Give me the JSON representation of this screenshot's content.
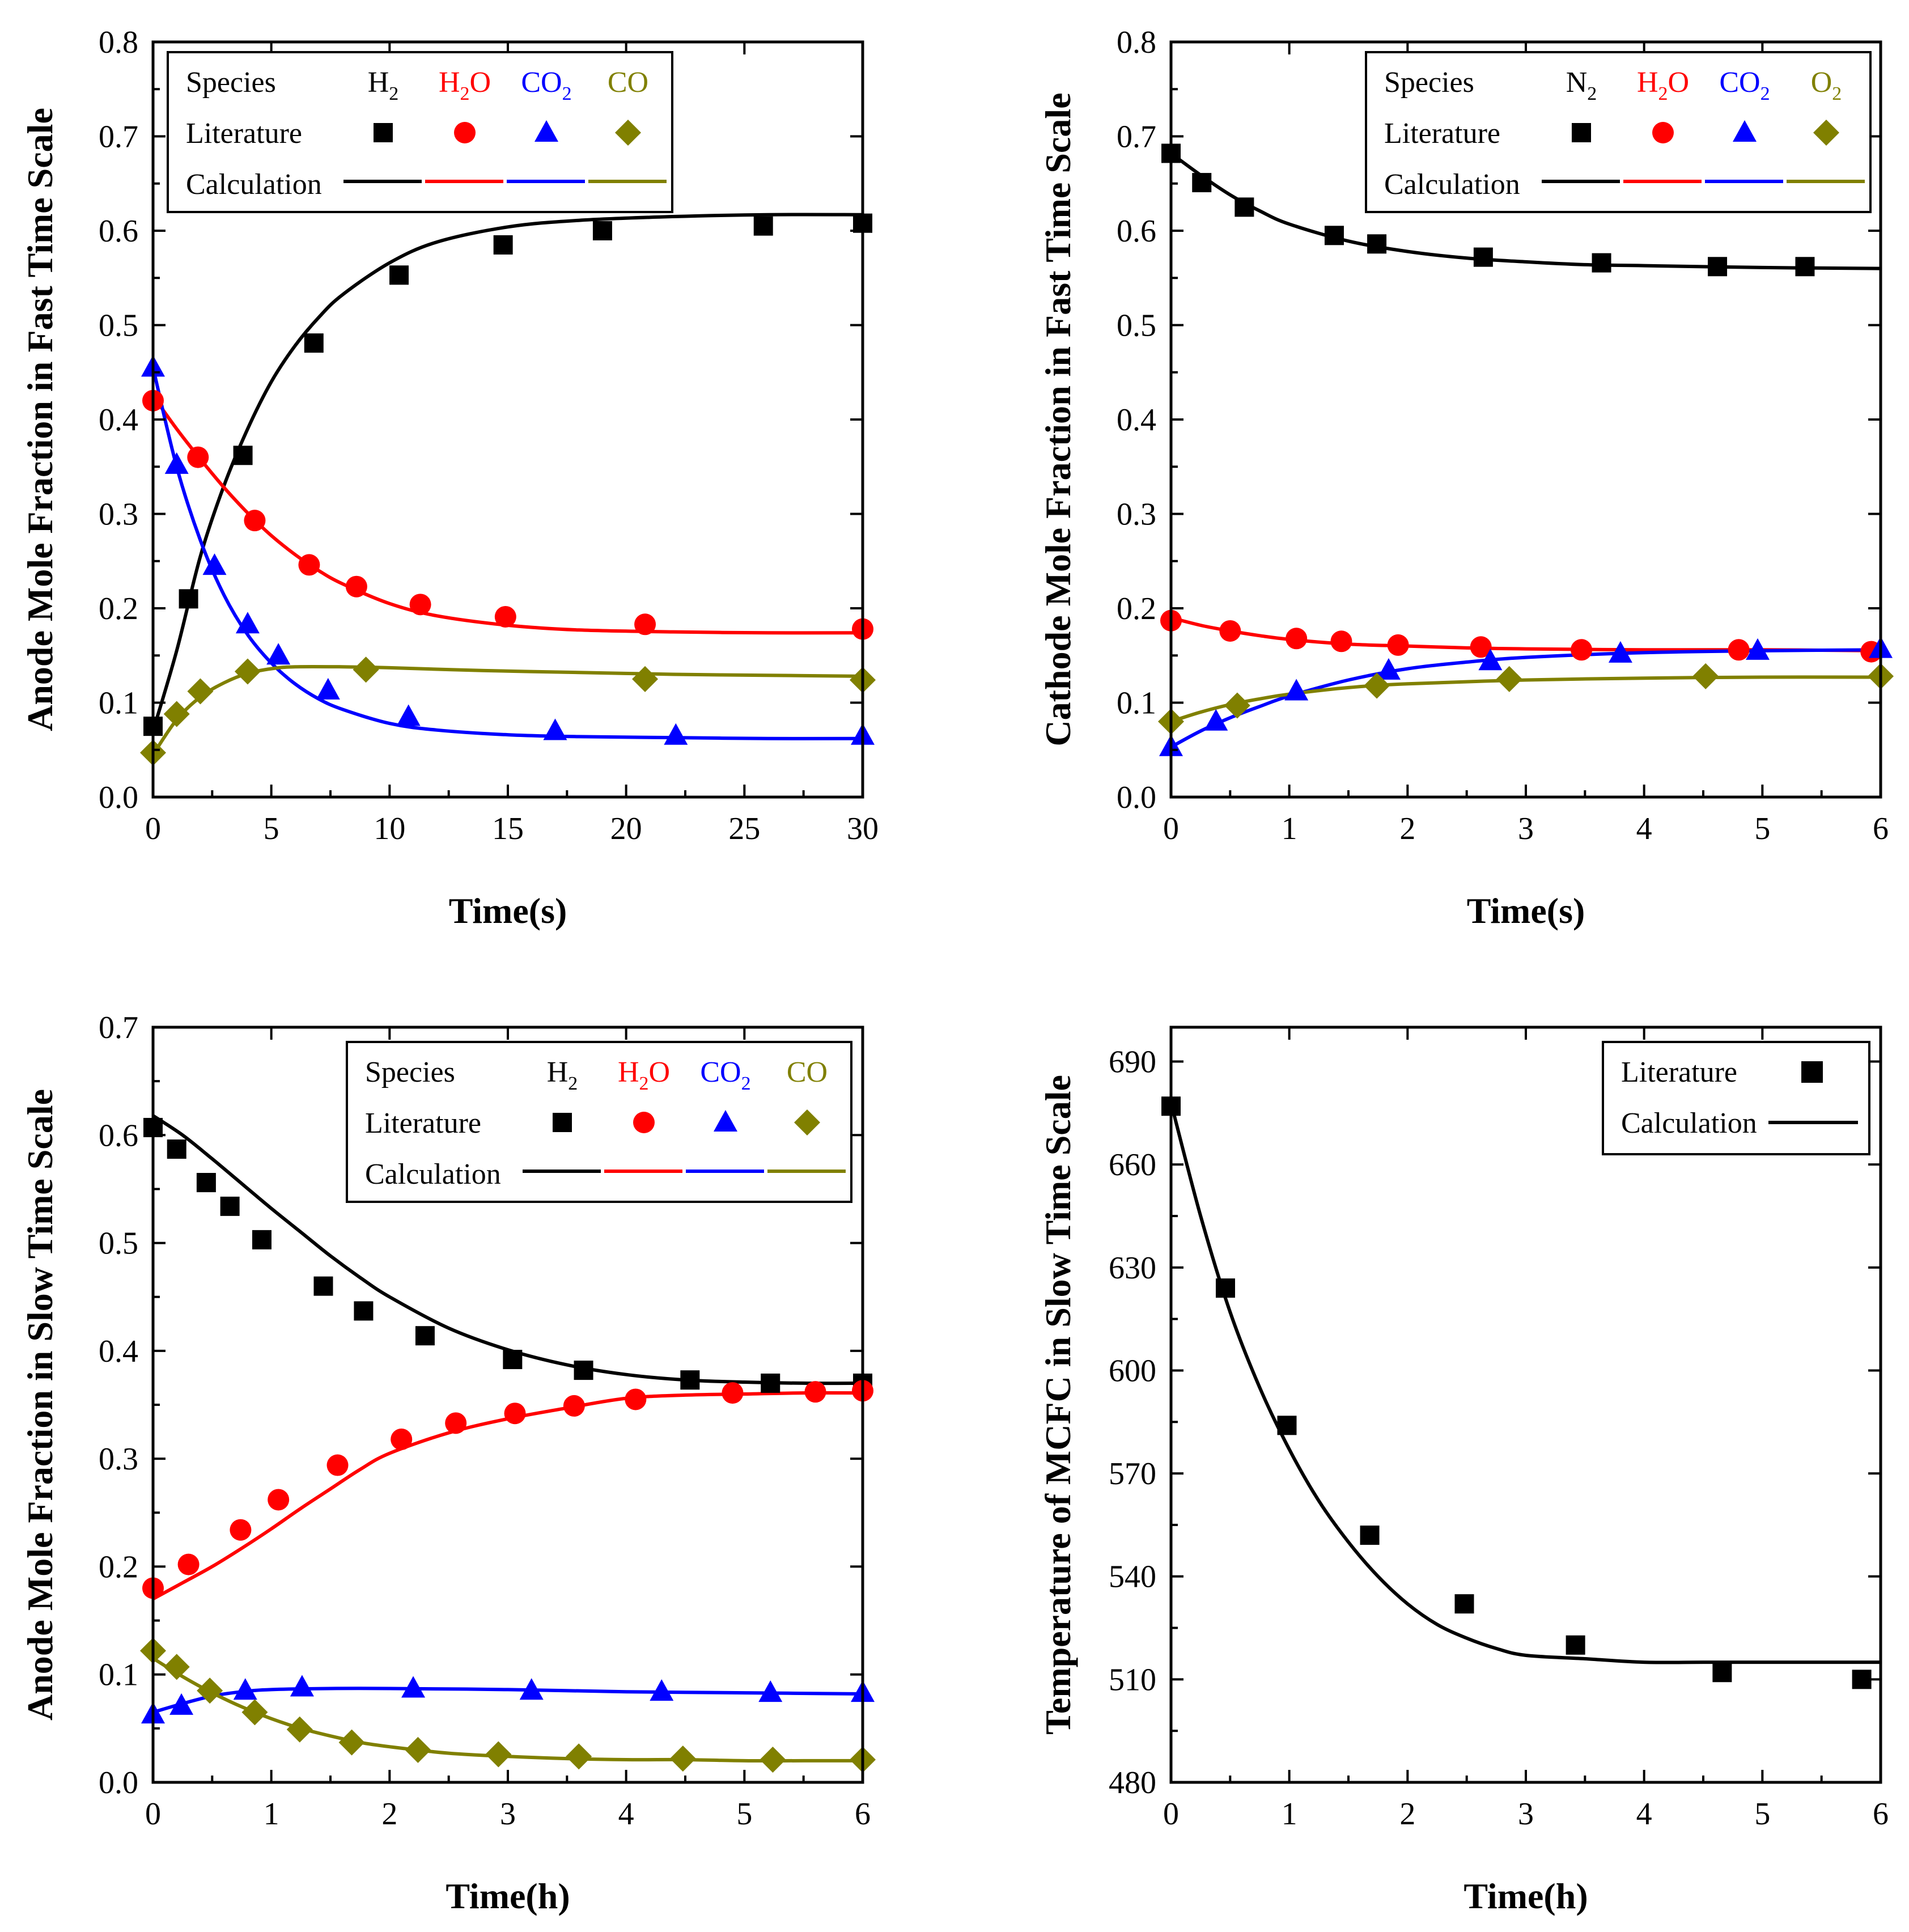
{
  "colors": {
    "black": "#000000",
    "red": "#ff0000",
    "blue": "#0000ff",
    "olive": "#808000"
  },
  "chart_data": [
    {
      "id": "anode-fast",
      "type": "scatter",
      "xlabel": "Time(s)",
      "ylabel": "Anode Mole Fraction in Fast Time Scale",
      "xlim": [
        0,
        30
      ],
      "ylim": [
        0,
        0.8
      ],
      "xticks": [
        "0",
        "5",
        "10",
        "15",
        "20",
        "25",
        "30"
      ],
      "yticks": [
        "0.0",
        "0.1",
        "0.2",
        "0.3",
        "0.4",
        "0.5",
        "0.6",
        "0.7",
        "0.8"
      ],
      "legend": {
        "position": "top-left",
        "species_label": "Species",
        "literature_label": "Literature",
        "calculation_label": "Calculation",
        "species": [
          {
            "base": "H",
            "sub": "2",
            "tail": "",
            "color": "black",
            "marker": "square"
          },
          {
            "base": "H",
            "sub": "2",
            "tail": "O",
            "color": "red",
            "marker": "circle"
          },
          {
            "base": "CO",
            "sub": "2",
            "tail": "",
            "color": "blue",
            "marker": "triangle"
          },
          {
            "base": "CO",
            "sub": "",
            "tail": "",
            "color": "olive",
            "marker": "diamond"
          }
        ]
      },
      "series": [
        {
          "name": "H2",
          "color": "black",
          "marker": "square",
          "x": [
            0,
            1.5,
            3.8,
            6.8,
            10.4,
            14.8,
            19,
            25.8,
            30
          ],
          "y": [
            0.075,
            0.21,
            0.362,
            0.481,
            0.553,
            0.585,
            0.6,
            0.605,
            0.608
          ],
          "calc_x": [
            0,
            1,
            2,
            3,
            4,
            5,
            6,
            7,
            8,
            10,
            12,
            15,
            18,
            22,
            26,
            30
          ],
          "calc_y": [
            0.07,
            0.155,
            0.255,
            0.33,
            0.39,
            0.44,
            0.478,
            0.508,
            0.532,
            0.566,
            0.588,
            0.604,
            0.611,
            0.615,
            0.617,
            0.617
          ]
        },
        {
          "name": "H2O",
          "color": "red",
          "marker": "circle",
          "x": [
            0,
            1.9,
            4.3,
            6.6,
            8.6,
            11.3,
            14.9,
            20.8,
            30
          ],
          "y": [
            0.42,
            0.36,
            0.293,
            0.246,
            0.223,
            0.204,
            0.191,
            0.183,
            0.178
          ],
          "calc_x": [
            0,
            1,
            2,
            3,
            4,
            5,
            6,
            7,
            8,
            10,
            12,
            15,
            18,
            22,
            26,
            30
          ],
          "calc_y": [
            0.425,
            0.39,
            0.358,
            0.328,
            0.301,
            0.277,
            0.257,
            0.24,
            0.226,
            0.205,
            0.192,
            0.182,
            0.177,
            0.175,
            0.174,
            0.174
          ]
        },
        {
          "name": "CO2",
          "color": "blue",
          "marker": "triangle",
          "x": [
            0,
            1,
            2.6,
            4,
            5.3,
            7.4,
            10.8,
            17,
            22.1,
            30
          ],
          "y": [
            0.455,
            0.352,
            0.245,
            0.183,
            0.15,
            0.113,
            0.085,
            0.07,
            0.065,
            0.065
          ],
          "calc_x": [
            0,
            1,
            2,
            3,
            4,
            5,
            6,
            7,
            8,
            10,
            12,
            15,
            18,
            22,
            26,
            30
          ],
          "calc_y": [
            0.455,
            0.35,
            0.272,
            0.214,
            0.172,
            0.142,
            0.12,
            0.104,
            0.093,
            0.078,
            0.071,
            0.066,
            0.064,
            0.063,
            0.062,
            0.062
          ]
        },
        {
          "name": "CO",
          "color": "olive",
          "marker": "diamond",
          "x": [
            0,
            1,
            2,
            4,
            9,
            20.8,
            30
          ],
          "y": [
            0.047,
            0.088,
            0.112,
            0.133,
            0.135,
            0.125,
            0.124
          ],
          "calc_x": [
            0,
            1,
            2,
            3,
            4,
            5,
            6,
            8,
            10,
            14,
            18,
            22,
            26,
            30
          ],
          "calc_y": [
            0.045,
            0.082,
            0.106,
            0.121,
            0.131,
            0.136,
            0.138,
            0.138,
            0.137,
            0.134,
            0.132,
            0.13,
            0.129,
            0.128
          ]
        }
      ]
    },
    {
      "id": "cathode-fast",
      "type": "scatter",
      "xlabel": "Time(s)",
      "ylabel": "Cathode Mole Fraction in Fast Time Scale",
      "xlim": [
        0,
        6
      ],
      "ylim": [
        0,
        0.8
      ],
      "xticks": [
        "0",
        "1",
        "2",
        "3",
        "4",
        "5",
        "6"
      ],
      "yticks": [
        "0.0",
        "0.1",
        "0.2",
        "0.3",
        "0.4",
        "0.5",
        "0.6",
        "0.7",
        "0.8"
      ],
      "legend": {
        "position": "top-right",
        "species_label": "Species",
        "literature_label": "Literature",
        "calculation_label": "Calculation",
        "species": [
          {
            "base": "N",
            "sub": "2",
            "tail": "",
            "color": "black",
            "marker": "square"
          },
          {
            "base": "H",
            "sub": "2",
            "tail": "O",
            "color": "red",
            "marker": "circle"
          },
          {
            "base": "CO",
            "sub": "2",
            "tail": "",
            "color": "blue",
            "marker": "triangle"
          },
          {
            "base": "O",
            "sub": "2",
            "tail": "",
            "color": "olive",
            "marker": "diamond"
          }
        ]
      },
      "series": [
        {
          "name": "N2",
          "color": "black",
          "marker": "square",
          "x": [
            0,
            0.26,
            0.62,
            1.38,
            1.74,
            2.64,
            3.64,
            4.62,
            5.36
          ],
          "y": [
            0.682,
            0.651,
            0.625,
            0.595,
            0.586,
            0.572,
            0.566,
            0.562,
            0.562
          ],
          "calc_x": [
            0,
            0.25,
            0.5,
            0.75,
            1,
            1.5,
            2,
            2.5,
            3,
            3.5,
            4,
            5,
            6
          ],
          "calc_y": [
            0.682,
            0.659,
            0.638,
            0.621,
            0.607,
            0.589,
            0.578,
            0.571,
            0.567,
            0.564,
            0.563,
            0.561,
            0.56
          ]
        },
        {
          "name": "H2O",
          "color": "red",
          "marker": "circle",
          "x": [
            0,
            0.5,
            1.06,
            1.44,
            1.92,
            2.62,
            3.47,
            4.8,
            5.92
          ],
          "y": [
            0.187,
            0.176,
            0.168,
            0.165,
            0.161,
            0.159,
            0.156,
            0.156,
            0.154
          ],
          "calc_x": [
            0,
            0.25,
            0.5,
            0.75,
            1,
            1.5,
            2,
            2.5,
            3,
            4,
            5,
            6
          ],
          "calc_y": [
            0.19,
            0.182,
            0.176,
            0.171,
            0.167,
            0.162,
            0.16,
            0.158,
            0.157,
            0.156,
            0.156,
            0.155
          ]
        },
        {
          "name": "CO2",
          "color": "blue",
          "marker": "triangle",
          "x": [
            0,
            0.38,
            1.06,
            1.84,
            2.7,
            3.8,
            4.96,
            6
          ],
          "y": [
            0.053,
            0.08,
            0.112,
            0.134,
            0.144,
            0.152,
            0.155,
            0.157
          ],
          "calc_x": [
            0,
            0.25,
            0.5,
            0.75,
            1,
            1.5,
            2,
            2.5,
            3,
            4,
            5,
            6
          ],
          "calc_y": [
            0.053,
            0.07,
            0.084,
            0.096,
            0.107,
            0.124,
            0.136,
            0.143,
            0.148,
            0.153,
            0.155,
            0.156
          ]
        },
        {
          "name": "O2",
          "color": "olive",
          "marker": "diamond",
          "x": [
            0,
            0.56,
            1.74,
            2.86,
            4.52,
            6
          ],
          "y": [
            0.08,
            0.097,
            0.118,
            0.125,
            0.128,
            0.128
          ],
          "calc_x": [
            0,
            0.25,
            0.5,
            0.75,
            1,
            1.5,
            2,
            3,
            4,
            5,
            6
          ],
          "calc_y": [
            0.08,
            0.09,
            0.098,
            0.104,
            0.109,
            0.116,
            0.12,
            0.124,
            0.126,
            0.127,
            0.127
          ]
        }
      ]
    },
    {
      "id": "anode-slow",
      "type": "scatter",
      "xlabel": "Time(h)",
      "ylabel": "Anode Mole Fraction in Slow Time Scale",
      "xlim": [
        0,
        6
      ],
      "ylim": [
        0,
        0.7
      ],
      "xticks": [
        "0",
        "1",
        "2",
        "3",
        "4",
        "5",
        "6"
      ],
      "yticks": [
        "0.0",
        "0.1",
        "0.2",
        "0.3",
        "0.4",
        "0.5",
        "0.6",
        "0.7"
      ],
      "legend": {
        "position": "top-right",
        "species_label": "Species",
        "literature_label": "Literature",
        "calculation_label": "Calculation",
        "species": [
          {
            "base": "H",
            "sub": "2",
            "tail": "",
            "color": "black",
            "marker": "square"
          },
          {
            "base": "H",
            "sub": "2",
            "tail": "O",
            "color": "red",
            "marker": "circle"
          },
          {
            "base": "CO",
            "sub": "2",
            "tail": "",
            "color": "blue",
            "marker": "triangle"
          },
          {
            "base": "CO",
            "sub": "",
            "tail": "",
            "color": "olive",
            "marker": "diamond"
          }
        ]
      },
      "series": [
        {
          "name": "H2",
          "color": "black",
          "marker": "square",
          "x": [
            0,
            0.2,
            0.45,
            0.65,
            0.92,
            1.44,
            1.78,
            2.3,
            3.04,
            3.64,
            4.54,
            5.22,
            6
          ],
          "y": [
            0.607,
            0.587,
            0.556,
            0.534,
            0.503,
            0.46,
            0.437,
            0.414,
            0.392,
            0.382,
            0.373,
            0.37,
            0.37
          ],
          "calc_x": [
            0,
            0.25,
            0.5,
            0.75,
            1,
            1.25,
            1.5,
            1.75,
            2,
            2.5,
            3,
            3.5,
            4,
            4.5,
            5,
            5.5,
            6
          ],
          "calc_y": [
            0.618,
            0.6,
            0.578,
            0.555,
            0.532,
            0.51,
            0.488,
            0.468,
            0.45,
            0.421,
            0.401,
            0.387,
            0.378,
            0.373,
            0.371,
            0.37,
            0.37
          ]
        },
        {
          "name": "H2O",
          "color": "red",
          "marker": "circle",
          "x": [
            0,
            0.3,
            0.74,
            1.06,
            1.56,
            2.1,
            2.56,
            3.06,
            3.56,
            4.08,
            4.9,
            5.6,
            6
          ],
          "y": [
            0.18,
            0.202,
            0.234,
            0.262,
            0.294,
            0.318,
            0.333,
            0.342,
            0.349,
            0.355,
            0.361,
            0.362,
            0.363
          ],
          "calc_x": [
            0,
            0.25,
            0.5,
            0.75,
            1,
            1.25,
            1.5,
            1.75,
            2,
            2.5,
            3,
            3.5,
            4,
            4.5,
            5,
            5.5,
            6
          ],
          "calc_y": [
            0.17,
            0.185,
            0.2,
            0.217,
            0.235,
            0.254,
            0.272,
            0.29,
            0.305,
            0.324,
            0.337,
            0.347,
            0.356,
            0.359,
            0.36,
            0.361,
            0.361
          ]
        },
        {
          "name": "CO2",
          "color": "blue",
          "marker": "triangle",
          "x": [
            0,
            0.24,
            0.78,
            1.26,
            2.2,
            3.2,
            4.3,
            5.22,
            6
          ],
          "y": [
            0.063,
            0.071,
            0.085,
            0.088,
            0.087,
            0.085,
            0.084,
            0.083,
            0.083
          ],
          "calc_x": [
            0,
            0.25,
            0.5,
            0.75,
            1,
            1.5,
            2,
            3,
            4,
            5,
            6
          ],
          "calc_y": [
            0.065,
            0.073,
            0.08,
            0.084,
            0.086,
            0.087,
            0.087,
            0.086,
            0.084,
            0.083,
            0.082
          ]
        },
        {
          "name": "CO",
          "color": "olive",
          "marker": "diamond",
          "x": [
            0,
            0.2,
            0.48,
            0.86,
            1.24,
            1.68,
            2.24,
            2.92,
            3.6,
            4.48,
            5.24,
            6
          ],
          "y": [
            0.122,
            0.107,
            0.085,
            0.065,
            0.049,
            0.037,
            0.03,
            0.026,
            0.024,
            0.022,
            0.021,
            0.021
          ],
          "calc_x": [
            0,
            0.25,
            0.5,
            0.75,
            1,
            1.25,
            1.5,
            1.75,
            2,
            2.5,
            3,
            3.5,
            4,
            4.5,
            5,
            5.5,
            6
          ],
          "calc_y": [
            0.115,
            0.098,
            0.083,
            0.07,
            0.059,
            0.05,
            0.043,
            0.037,
            0.033,
            0.027,
            0.024,
            0.022,
            0.021,
            0.021,
            0.02,
            0.02,
            0.02
          ]
        }
      ]
    },
    {
      "id": "temperature-slow",
      "type": "scatter",
      "xlabel": "Time(h)",
      "ylabel": "Temperature of MCFC in Slow Time Scale",
      "xlim": [
        0,
        6
      ],
      "ylim": [
        480,
        700
      ],
      "xticks": [
        "0",
        "1",
        "2",
        "3",
        "4",
        "5",
        "6"
      ],
      "ytick_values": [
        480,
        510,
        540,
        570,
        600,
        630,
        660,
        690
      ],
      "yticks": [
        "480",
        "510",
        "540",
        "570",
        "600",
        "630",
        "660",
        "690"
      ],
      "legend": {
        "position": "top-right",
        "literature_label": "Literature",
        "calculation_label": "Calculation",
        "color": "black"
      },
      "series": [
        {
          "name": "Temperature",
          "color": "black",
          "marker": "square",
          "x": [
            0,
            0.46,
            0.98,
            1.68,
            2.48,
            3.42,
            4.66,
            5.84
          ],
          "y": [
            677,
            624,
            584,
            552,
            532,
            520,
            512,
            510
          ],
          "calc_x": [
            0,
            0.25,
            0.5,
            0.75,
            1,
            1.25,
            1.5,
            1.75,
            2,
            2.25,
            2.5,
            2.75,
            3,
            3.5,
            4,
            4.5,
            5,
            5.5,
            6
          ],
          "calc_y": [
            678,
            645,
            617,
            595,
            577,
            562,
            550,
            540,
            532,
            526,
            522,
            519,
            517,
            516,
            515,
            515,
            515,
            515,
            515
          ]
        }
      ]
    }
  ]
}
